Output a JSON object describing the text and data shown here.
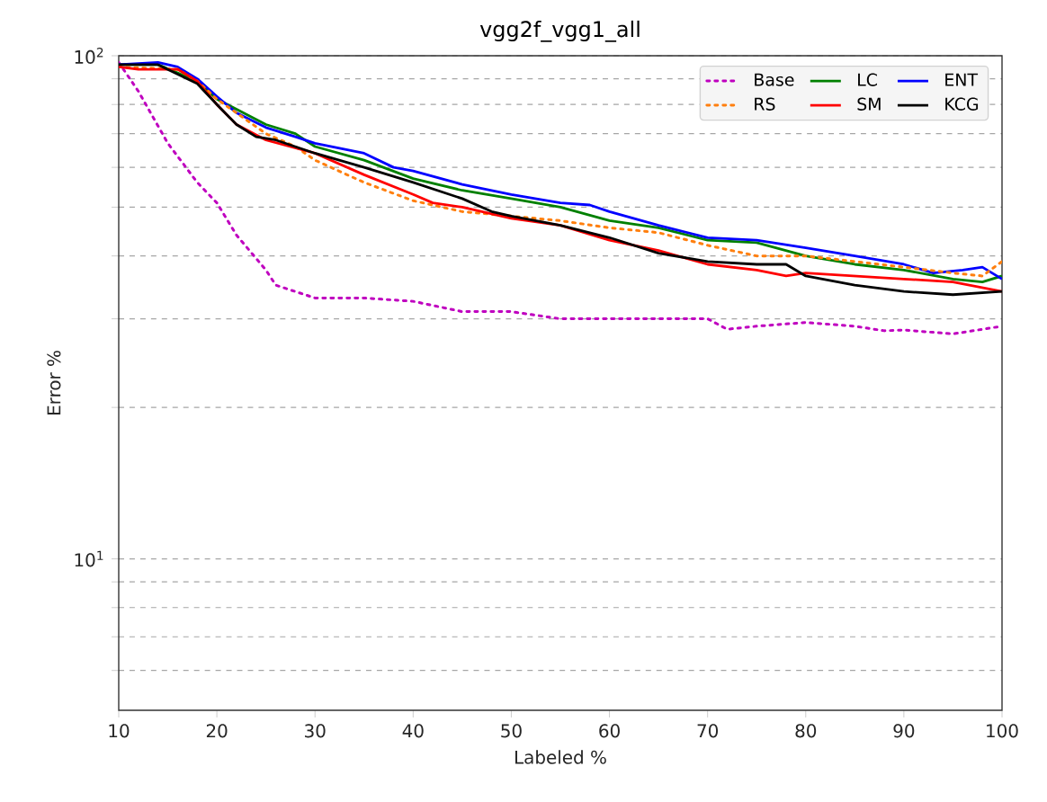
{
  "chart_data": {
    "type": "line",
    "title": "vgg2f_vgg1_all",
    "xlabel": "Labeled %",
    "ylabel": "Error %",
    "log": "y",
    "grid": "y",
    "legend": "top right",
    "marker": "none",
    "xlim": [
      10,
      100
    ],
    "xticks": [
      10,
      20,
      30,
      40,
      50,
      60,
      70,
      80,
      90,
      100
    ],
    "ylim": [
      5,
      100
    ],
    "yticks": [
      {
        "value": 6,
        "label": null
      },
      {
        "value": 7,
        "label": null
      },
      {
        "value": 8,
        "label": null
      },
      {
        "value": 9,
        "label": null
      },
      {
        "value": 10,
        "label": "10$^{1}$"
      },
      {
        "value": 20,
        "label": null
      },
      {
        "value": 30,
        "label": null
      },
      {
        "value": 40,
        "label": null
      },
      {
        "value": 50,
        "label": null
      },
      {
        "value": 60,
        "label": null
      },
      {
        "value": 70,
        "label": null
      },
      {
        "value": 80,
        "label": null
      },
      {
        "value": 90,
        "label": null
      },
      {
        "value": 100,
        "label": "10$^{2}$"
      }
    ],
    "series": [
      {
        "name": "Base",
        "color": "#bf00bf",
        "line_style": "dotted",
        "x": [
          10,
          12,
          15,
          18,
          20,
          22,
          25,
          26,
          30,
          35,
          40,
          45,
          50,
          55,
          60,
          65,
          70,
          72,
          75,
          80,
          85,
          88,
          90,
          95,
          100
        ],
        "values": [
          97,
          85,
          67,
          56,
          51,
          44,
          37.5,
          35,
          33,
          33,
          32.5,
          31,
          31,
          30,
          30,
          30,
          30,
          28.6,
          29,
          29.5,
          29,
          28.4,
          28.5,
          28,
          29
        ]
      },
      {
        "name": "RS",
        "color": "#ff7f0e",
        "line_style": "dotted",
        "x": [
          10,
          16,
          18,
          20,
          25,
          28,
          30,
          35,
          40,
          45,
          50,
          55,
          60,
          65,
          70,
          75,
          80,
          85,
          90,
          95,
          98,
          100
        ],
        "values": [
          95,
          94,
          89,
          82,
          70,
          66,
          62,
          56,
          51.5,
          49,
          48,
          47,
          45.5,
          44.5,
          42,
          40,
          40,
          39,
          38,
          37,
          36.5,
          39
        ]
      },
      {
        "name": "LC",
        "color": "#008000",
        "line_style": "solid",
        "x": [
          10,
          14,
          18,
          20,
          25,
          28,
          30,
          35,
          40,
          45,
          50,
          55,
          60,
          65,
          70,
          75,
          80,
          85,
          90,
          95,
          98,
          100
        ],
        "values": [
          96,
          96,
          89,
          82,
          73,
          70,
          66,
          62,
          57,
          54,
          52,
          50,
          47,
          45.5,
          43,
          42.5,
          40,
          38.5,
          37.5,
          36,
          35.5,
          36.5
        ]
      },
      {
        "name": "SM",
        "color": "#ff0000",
        "line_style": "solid",
        "x": [
          10,
          12,
          16,
          18,
          20,
          22,
          25,
          30,
          35,
          40,
          42,
          45,
          50,
          55,
          60,
          65,
          70,
          75,
          78,
          80,
          85,
          90,
          95,
          100
        ],
        "values": [
          95,
          94,
          94,
          89,
          80,
          73,
          68,
          64,
          58,
          53,
          51,
          50,
          47.5,
          46,
          43,
          41,
          38.5,
          37.5,
          36.5,
          37,
          36.5,
          36,
          35.5,
          34
        ]
      },
      {
        "name": "ENT",
        "color": "#0000ff",
        "line_style": "solid",
        "x": [
          10,
          14,
          16,
          18,
          20,
          22,
          25,
          28,
          30,
          35,
          38,
          40,
          45,
          50,
          55,
          58,
          60,
          65,
          70,
          75,
          80,
          85,
          90,
          93,
          96,
          98,
          100
        ],
        "values": [
          96,
          97,
          95,
          90,
          83,
          77,
          72,
          69,
          67,
          64,
          60,
          59,
          55.5,
          53,
          51,
          50.5,
          49,
          46,
          43.5,
          43,
          41.5,
          40,
          38.5,
          37,
          37.5,
          38,
          36
        ]
      },
      {
        "name": "KCG",
        "color": "#000000",
        "line_style": "solid",
        "x": [
          10,
          14,
          18,
          20,
          22,
          24,
          26,
          30,
          35,
          40,
          45,
          48,
          50,
          55,
          60,
          65,
          70,
          75,
          78,
          80,
          85,
          90,
          95,
          100
        ],
        "values": [
          96,
          96,
          88,
          80,
          73,
          69,
          68,
          64,
          60,
          56,
          52,
          49,
          48,
          46,
          43.5,
          40.5,
          39,
          38.5,
          38.5,
          36.5,
          35,
          34,
          33.5,
          34
        ]
      }
    ]
  }
}
